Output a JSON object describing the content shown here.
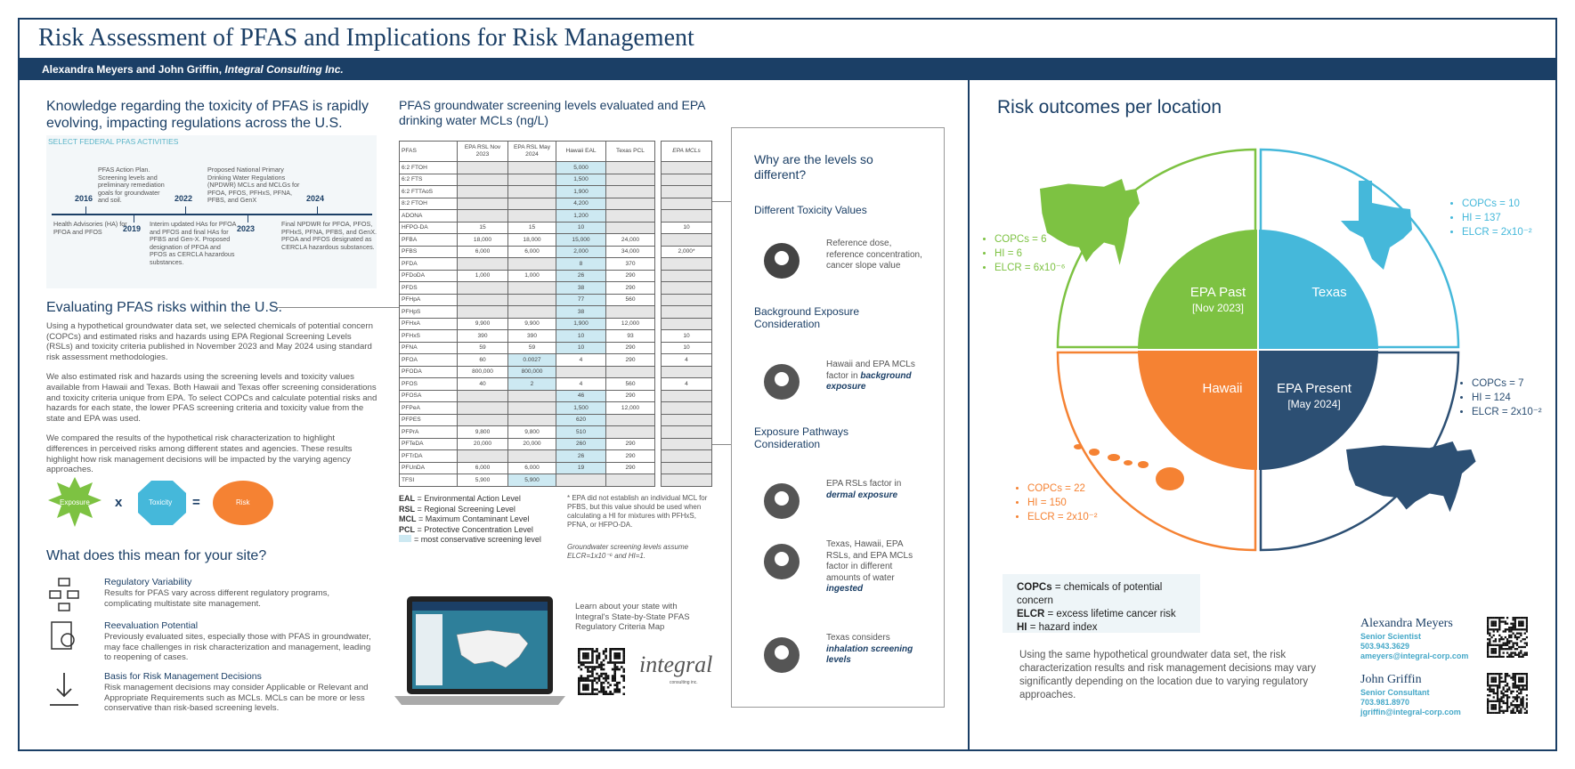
{
  "header": {
    "title": "Risk Assessment of PFAS and Implications for Risk Management",
    "authors": "Alexandra Meyers and John Griffin,",
    "affiliation": "Integral Consulting Inc."
  },
  "intro": {
    "heading": "Knowledge regarding the toxicity of PFAS is rapidly evolving, impacting regulations across the U.S.",
    "timeline_label": "SELECT FEDERAL PFAS ACTIVITIES",
    "events": [
      {
        "year": "2016",
        "text": "Health Advisories (HA) for PFOA and PFOS"
      },
      {
        "year": "2019",
        "text": "PFAS Action Plan. Screening levels and preliminary remediation goals for groundwater and soil."
      },
      {
        "year": "2022",
        "text": "Interim updated HAs for PFOA and PFOS and final HAs for PFBS and Gen-X. Proposed designation of PFOA and PFOS as CERCLA hazardous substances."
      },
      {
        "year": "2023",
        "text": "Proposed National Primary Drinking Water Regulations (NPDWR) MCLs and MCLGs for PFOA, PFOS, PFHxS, PFNA, PFBS, and GenX"
      },
      {
        "year": "2024",
        "text": "Final NPDWR for PFOA, PFOS, PFHxS, PFNA, PFBS, and GenX. PFOA and PFOS designated as CERCLA hazardous substances."
      }
    ]
  },
  "evaluating": {
    "heading": "Evaluating PFAS risks within the U.S.",
    "paragraphs": [
      "Using a hypothetical groundwater data set, we selected chemicals of potential concern (COPCs) and estimated risks and hazards using EPA Regional Screening Levels (RSLs) and toxicity criteria published in November 2023 and May 2024 using standard risk assessment methodologies.",
      "We also estimated risk and hazards using the screening levels and toxicity values available from Hawaii and Texas. Both Hawaii and Texas offer screening considerations and toxicity criteria unique from EPA. To select COPCs and calculate potential risks and hazards for each state, the lower PFAS screening criteria and toxicity value from the state and EPA was used.",
      "We compared the results of the hypothetical risk characterization to highlight differences in perceived risks among different states and agencies. These results highlight how risk management decisions will be impacted by the varying agency approaches."
    ]
  },
  "equation": {
    "exposure": "Exposure",
    "times": "x",
    "toxicity": "Toxicity",
    "equals": "=",
    "risk": "Risk"
  },
  "site": {
    "heading": "What does this mean for your site?",
    "items": [
      {
        "title": "Regulatory Variability",
        "text": "Results for PFAS vary across different regulatory programs, complicating multistate site management."
      },
      {
        "title": "Reevaluation Potential",
        "text": "Previously evaluated sites, especially those with PFAS in groundwater, may face challenges in risk characterization and management, leading to reopening of cases."
      },
      {
        "title": "Basis for Risk Management Decisions",
        "text": "Risk management decisions may consider Applicable or Relevant and Appropriate Requirements such as MCLs. MCLs can be more or less conservative than risk-based screening levels."
      }
    ]
  },
  "table": {
    "title": "PFAS groundwater screening levels evaluated and EPA drinking water MCLs (ng/L)",
    "headers": [
      "PFAS",
      "EPA RSL Nov 2023",
      "EPA RSL May 2024",
      "Hawaii EAL",
      "Texas PCL",
      "EPA MCLs"
    ],
    "rows": [
      [
        "6:2 FTOH",
        null,
        null,
        "5,000",
        null,
        null
      ],
      [
        "6:2 FTS",
        null,
        null,
        "1,500",
        null,
        null
      ],
      [
        "6:2 FTTAoS",
        null,
        null,
        "1,900",
        null,
        null
      ],
      [
        "8:2 FTOH",
        null,
        null,
        "4,200",
        null,
        null
      ],
      [
        "ADONA",
        null,
        null,
        "1,200",
        null,
        null
      ],
      [
        "HFPO-DA",
        "15",
        "15",
        "10",
        null,
        "10"
      ],
      [
        "PFBA",
        "18,000",
        "18,000",
        "15,000",
        "24,000",
        null
      ],
      [
        "PFBS",
        "6,000",
        "6,000",
        "2,000",
        "34,000",
        "2,000*"
      ],
      [
        "PFDA",
        null,
        null,
        "8",
        "370",
        null
      ],
      [
        "PFDoDA",
        "1,000",
        "1,000",
        "26",
        "290",
        null
      ],
      [
        "PFDS",
        null,
        null,
        "38",
        "290",
        null
      ],
      [
        "PFHpA",
        null,
        null,
        "77",
        "560",
        null
      ],
      [
        "PFHpS",
        null,
        null,
        "38",
        null,
        null
      ],
      [
        "PFHxA",
        "9,900",
        "9,900",
        "1,900",
        "12,000",
        null
      ],
      [
        "PFHxS",
        "390",
        "390",
        "10",
        "93",
        "10"
      ],
      [
        "PFNA",
        "59",
        "59",
        "10",
        "290",
        "10"
      ],
      [
        "PFOA",
        "60",
        "0.0027",
        "4",
        "290",
        "4"
      ],
      [
        "PFODA",
        "800,000",
        "800,000",
        null,
        null,
        null
      ],
      [
        "PFOS",
        "40",
        "2",
        "4",
        "560",
        "4"
      ],
      [
        "PFOSA",
        null,
        null,
        "46",
        "290",
        null
      ],
      [
        "PFPeA",
        null,
        null,
        "1,500",
        "12,000",
        null
      ],
      [
        "PFPES",
        null,
        null,
        "620",
        null,
        null
      ],
      [
        "PFPrA",
        "9,800",
        "9,800",
        "510",
        null,
        null
      ],
      [
        "PFTeDA",
        "20,000",
        "20,000",
        "260",
        "290",
        null
      ],
      [
        "PFTrDA",
        null,
        null,
        "26",
        "290",
        null
      ],
      [
        "PFUnDA",
        "6,000",
        "6,000",
        "19",
        "290",
        null
      ],
      [
        "TFSI",
        "5,900",
        "5,900",
        null,
        null,
        null
      ]
    ],
    "highlight": [
      [
        3
      ],
      [
        3
      ],
      [
        3
      ],
      [
        3
      ],
      [
        3
      ],
      [
        3
      ],
      [
        3
      ],
      [
        3
      ],
      [
        3
      ],
      [
        3
      ],
      [
        3
      ],
      [
        3
      ],
      [
        3
      ],
      [
        3
      ],
      [
        3
      ],
      [
        3
      ],
      [
        2
      ],
      [
        2
      ],
      [
        2
      ],
      [
        3
      ],
      [
        3
      ],
      [
        3
      ],
      [
        3
      ],
      [
        3
      ],
      [
        3
      ],
      [
        3
      ],
      [
        2
      ]
    ],
    "highlight_color": "#cde9f2",
    "legend": [
      {
        "abbr": "EAL",
        "text": "= Environmental Action Level"
      },
      {
        "abbr": "RSL",
        "text": "= Regional Screening Level"
      },
      {
        "abbr": "MCL",
        "text": "= Maximum Contaminant Level"
      },
      {
        "abbr": "PCL",
        "text": "= Protective Concentration Level"
      }
    ],
    "swatch_text": "= most conservative screening level",
    "footnote": "* EPA did not establish an individual MCL for PFBS, but this value should be used when calculating a HI for mixtures with PFHxS, PFNA, or HFPO-DA.",
    "note": "Groundwater screening levels assume ELCR=1x10⁻⁶ and HI=1."
  },
  "map_promo": {
    "text": "Learn about your state with Integral's State-by-State PFAS Regulatory Criteria Map",
    "logo": "integral",
    "logo_sub": "consulting inc."
  },
  "why": {
    "title": "Why are the levels so different?",
    "sections": [
      {
        "heading": "Different Toxicity Values",
        "items": [
          {
            "text": "Reference dose, reference concentration, cancer slope value",
            "emphasis": null
          }
        ]
      },
      {
        "heading": "Background Exposure Consideration",
        "items": [
          {
            "text": "Hawaii and EPA MCLs factor in",
            "emphasis": "background exposure"
          }
        ]
      },
      {
        "heading": "Exposure Pathways Consideration",
        "items": [
          {
            "text": "EPA RSLs factor in",
            "emphasis": "dermal exposure"
          },
          {
            "text": "Texas, Hawaii, EPA RSLs, and EPA MCLs factor in different amounts of water",
            "emphasis": "ingested"
          },
          {
            "text": "Texas considers",
            "emphasis": "inhalation screening levels"
          }
        ]
      }
    ]
  },
  "risk": {
    "heading": "Risk outcomes per location",
    "locations": [
      {
        "name": "EPA Past",
        "sub": "[Nov 2023]",
        "color": "#7dc242",
        "stats": [
          "COPCs = 6",
          "HI = 6",
          "ELCR = 6x10⁻⁶"
        ]
      },
      {
        "name": "Texas",
        "sub": null,
        "color": "#45b8da",
        "stats": [
          "COPCs = 10",
          "HI = 137",
          "ELCR = 2x10⁻²"
        ]
      },
      {
        "name": "Hawaii",
        "sub": null,
        "color": "#f58233",
        "stats": [
          "COPCs = 22",
          "HI = 150",
          "ELCR = 2x10⁻²"
        ]
      },
      {
        "name": "EPA Present",
        "sub": "[May 2024]",
        "color": "#2c4f73",
        "stats": [
          "COPCs = 7",
          "HI = 124",
          "ELCR = 2x10⁻²"
        ]
      }
    ],
    "glossary": [
      {
        "abbr": "COPCs",
        "text": "= chemicals of potential concern"
      },
      {
        "abbr": "ELCR",
        "text": "= excess lifetime cancer risk"
      },
      {
        "abbr": "HI",
        "text": "= hazard index"
      }
    ],
    "conclusion": "Using the same hypothetical groundwater data set, the risk characterization results and risk management decisions may vary significantly depending on the location due to varying regulatory approaches."
  },
  "contacts": [
    {
      "name": "Alexandra Meyers",
      "role": "Senior Scientist",
      "phone": "503.943.3629",
      "email": "ameyers@integral-corp.com"
    },
    {
      "name": "John Griffin",
      "role": "Senior Consultant",
      "phone": "703.981.8970",
      "email": "jgriffin@integral-corp.com"
    }
  ]
}
